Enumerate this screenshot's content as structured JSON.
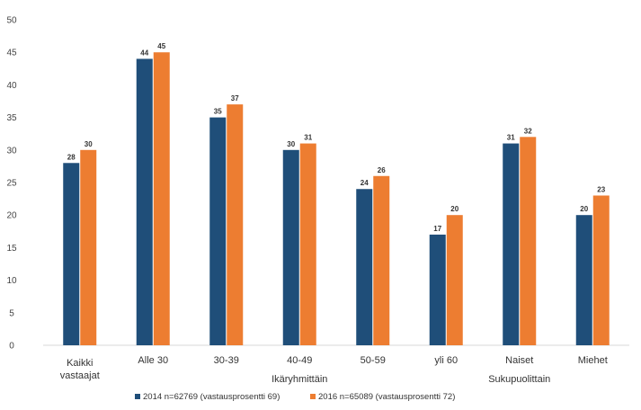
{
  "chart_data": {
    "type": "bar",
    "ylim": [
      0,
      50
    ],
    "yticks": [
      0,
      5,
      10,
      15,
      20,
      25,
      30,
      35,
      40,
      45,
      50
    ],
    "categories": [
      "Kaikki vastaajat",
      "Alle 30",
      "30-39",
      "40-49",
      "50-59",
      "yli 60",
      "Naiset",
      "Miehet"
    ],
    "group_labels": [
      {
        "label": "Ikäryhmittäin"
      },
      {
        "label": "Sukupuolittain"
      }
    ],
    "series": [
      {
        "name": "2014 n=62769 (vastausprosentti 69)",
        "color": "#1f4e79",
        "values": [
          28,
          44,
          35,
          30,
          24,
          17,
          31,
          20
        ]
      },
      {
        "name": "2016 n=65089 (vastausprosentti 72)",
        "color": "#ed7d31",
        "values": [
          30,
          45,
          37,
          31,
          26,
          20,
          32,
          23
        ]
      }
    ],
    "legend_position": "bottom",
    "grid": false
  }
}
